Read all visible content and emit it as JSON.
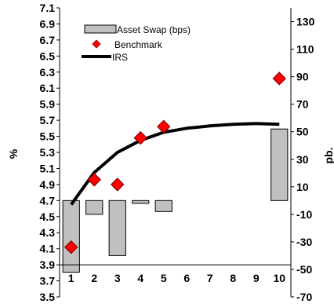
{
  "chart_data": {
    "type": "bar",
    "categories": [
      "1",
      "2",
      "3",
      "4",
      "5",
      "6",
      "7",
      "8",
      "9",
      "10"
    ],
    "ylabel_left": "%",
    "ylabel_right": "pb.",
    "ylim_left": [
      3.5,
      7.1
    ],
    "yticks_left": [
      "7.1",
      "6.9",
      "6.7",
      "6.5",
      "6.3",
      "6.1",
      "5.9",
      "5.7",
      "5.5",
      "5.3",
      "5.1",
      "4.9",
      "4.7",
      "4.5",
      "4.3",
      "4.1",
      "3.9",
      "3.7",
      "3.5"
    ],
    "ylim_right": [
      -70,
      140
    ],
    "yticks_right": [
      "130",
      "110",
      "90",
      "70",
      "50",
      "30",
      "10",
      "-10",
      "-30",
      "-50",
      "-70"
    ],
    "legend_position": "top-left",
    "series": [
      {
        "name": "Asset Swap (bps)",
        "kind": "bar",
        "axis": "right",
        "color": "#c0c0c0",
        "x": [
          "1",
          "2",
          "3",
          "4",
          "5",
          "10"
        ],
        "values": [
          -52,
          -10,
          -40,
          -2,
          -8,
          52
        ]
      },
      {
        "name": "Benchmark",
        "kind": "scatter",
        "axis": "left",
        "color": "#ff0000",
        "x": [
          "1",
          "2",
          "3",
          "4",
          "5",
          "10"
        ],
        "values": [
          4.12,
          4.96,
          4.9,
          5.48,
          5.62,
          6.22
        ]
      },
      {
        "name": "IRS",
        "kind": "line",
        "axis": "left",
        "color": "#000000",
        "x": [
          "1",
          "2",
          "3",
          "4",
          "5",
          "6",
          "7",
          "8",
          "9",
          "10"
        ],
        "values": [
          4.65,
          5.05,
          5.3,
          5.45,
          5.55,
          5.6,
          5.63,
          5.65,
          5.66,
          5.65
        ]
      }
    ]
  }
}
